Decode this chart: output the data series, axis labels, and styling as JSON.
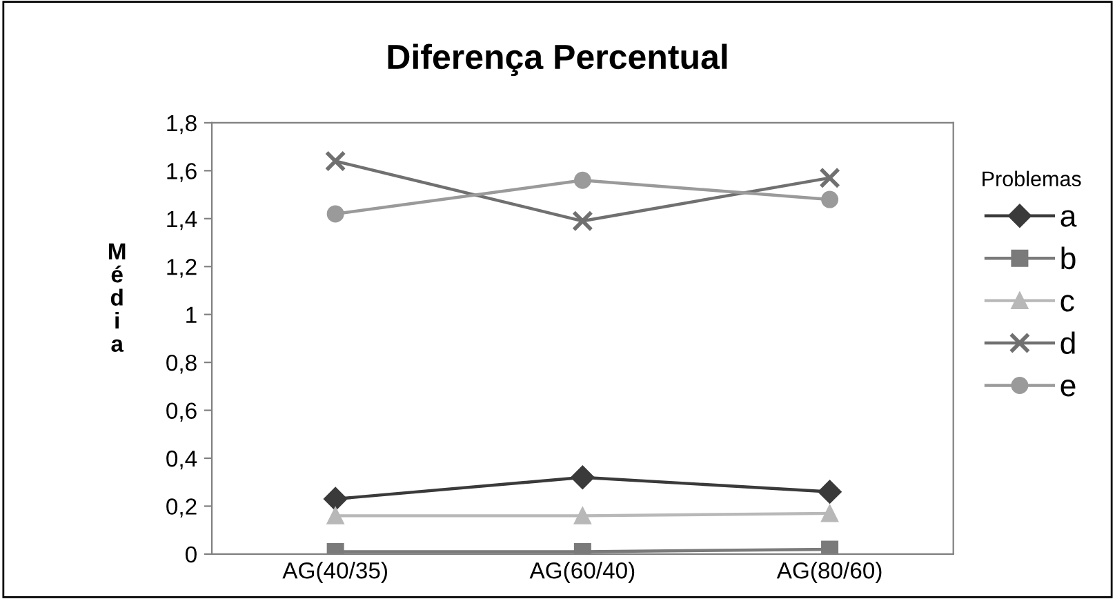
{
  "chart_data": {
    "type": "line",
    "title": "Diferença Percentual",
    "ylabel": "Média",
    "legend_title": "Problemas",
    "categories": [
      "AG(40/35)",
      "AG(60/40)",
      "AG(80/60)"
    ],
    "series": [
      {
        "name": "a",
        "color": "#3a3a3a",
        "marker": "diamond",
        "values": [
          0.23,
          0.32,
          0.26
        ]
      },
      {
        "name": "b",
        "color": "#7a7a7a",
        "marker": "square",
        "values": [
          0.01,
          0.01,
          0.02
        ]
      },
      {
        "name": "c",
        "color": "#b8b8b8",
        "marker": "triangle",
        "values": [
          0.16,
          0.16,
          0.17
        ]
      },
      {
        "name": "d",
        "color": "#707070",
        "marker": "cross",
        "values": [
          1.64,
          1.39,
          1.57
        ]
      },
      {
        "name": "e",
        "color": "#9a9a9a",
        "marker": "circle",
        "values": [
          1.42,
          1.56,
          1.48
        ]
      }
    ],
    "ylim": [
      0,
      1.8
    ],
    "yticks": [
      0,
      {
        "value": 0.2,
        "label": "0,2"
      },
      {
        "value": 0.4,
        "label": "0,4"
      },
      {
        "value": 0.6,
        "label": "0,6"
      },
      {
        "value": 0.8,
        "label": "0,8"
      },
      1,
      {
        "value": 1.2,
        "label": "1,2"
      },
      {
        "value": 1.4,
        "label": "1,4"
      },
      {
        "value": 1.6,
        "label": "1,6"
      },
      {
        "value": 1.8,
        "label": "1,8"
      }
    ],
    "grid": false,
    "legend": "right",
    "line_style": "solid"
  }
}
